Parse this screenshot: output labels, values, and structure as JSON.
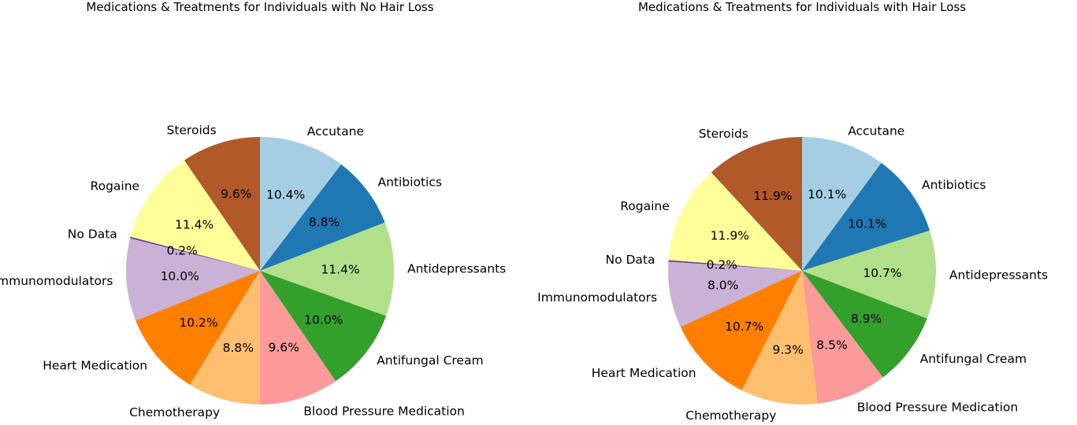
{
  "chart_data": [
    {
      "type": "pie",
      "title": "Medications & Treatments for Individuals with No Hair Loss",
      "start_angle_deg": 90,
      "direction": "counterclockwise",
      "slices": [
        {
          "label": "Steroids",
          "value": 9.6,
          "pct_text": "9.6%",
          "color": "#b15928"
        },
        {
          "label": "Rogaine",
          "value": 11.4,
          "pct_text": "11.4%",
          "color": "#ffff99"
        },
        {
          "label": "No Data",
          "value": 0.2,
          "pct_text": "0.2%",
          "color": "#6a3d9a"
        },
        {
          "label": "Immunomodulators",
          "value": 10.0,
          "pct_text": "10.0%",
          "color": "#cab2d6"
        },
        {
          "label": "Heart Medication",
          "value": 10.2,
          "pct_text": "10.2%",
          "color": "#ff7f00"
        },
        {
          "label": "Chemotherapy",
          "value": 8.8,
          "pct_text": "8.8%",
          "color": "#fdbf6f"
        },
        {
          "label": "Blood Pressure Medication",
          "value": 9.6,
          "pct_text": "9.6%",
          "color": "#fb9a99"
        },
        {
          "label": "Antifungal Cream",
          "value": 10.0,
          "pct_text": "10.0%",
          "color": "#33a02c"
        },
        {
          "label": "Antidepressants",
          "value": 11.4,
          "pct_text": "11.4%",
          "color": "#b2df8a"
        },
        {
          "label": "Antibiotics",
          "value": 8.8,
          "pct_text": "8.8%",
          "color": "#1f78b4"
        },
        {
          "label": "Accutane",
          "value": 10.4,
          "pct_text": "10.4%",
          "color": "#a6cee3"
        }
      ]
    },
    {
      "type": "pie",
      "title": "Medications & Treatments for Individuals with Hair Loss",
      "start_angle_deg": 90,
      "direction": "counterclockwise",
      "slices": [
        {
          "label": "Steroids",
          "value": 11.9,
          "pct_text": "11.9%",
          "color": "#b15928"
        },
        {
          "label": "Rogaine",
          "value": 11.9,
          "pct_text": "11.9%",
          "color": "#ffff99"
        },
        {
          "label": "No Data",
          "value": 0.2,
          "pct_text": "0.2%",
          "color": "#6a3d9a"
        },
        {
          "label": "Immunomodulators",
          "value": 8.0,
          "pct_text": "8.0%",
          "color": "#cab2d6"
        },
        {
          "label": "Heart Medication",
          "value": 10.7,
          "pct_text": "10.7%",
          "color": "#ff7f00"
        },
        {
          "label": "Chemotherapy",
          "value": 9.3,
          "pct_text": "9.3%",
          "color": "#fdbf6f"
        },
        {
          "label": "Blood Pressure Medication",
          "value": 8.5,
          "pct_text": "8.5%",
          "color": "#fb9a99"
        },
        {
          "label": "Antifungal Cream",
          "value": 8.9,
          "pct_text": "8.9%",
          "color": "#33a02c"
        },
        {
          "label": "Antidepressants",
          "value": 10.7,
          "pct_text": "10.7%",
          "color": "#b2df8a"
        },
        {
          "label": "Antibiotics",
          "value": 10.1,
          "pct_text": "10.1%",
          "color": "#1f78b4"
        },
        {
          "label": "Accutane",
          "value": 10.1,
          "pct_text": "10.1%",
          "color": "#a6cee3"
        }
      ]
    }
  ]
}
